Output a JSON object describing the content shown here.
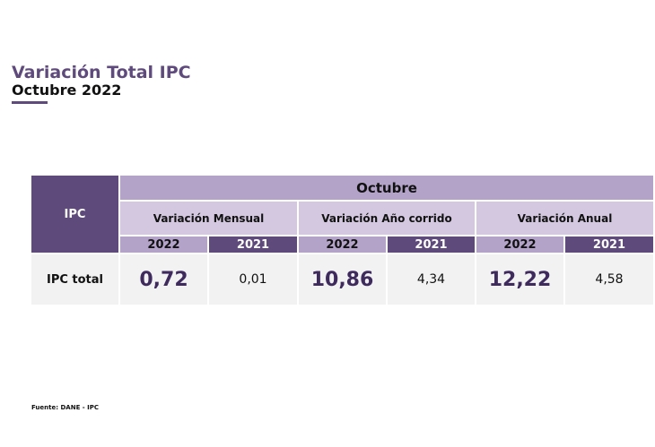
{
  "header": {
    "title": "Variación Total IPC",
    "subtitle": "Octubre 2022",
    "accent_color": "#5f4a7c"
  },
  "table": {
    "corner_label": "IPC",
    "month_label": "Octubre",
    "groups": [
      {
        "label": "Variación Mensual",
        "year_a": "2022",
        "year_b": "2021",
        "value_a": "0,72",
        "value_b": "0,01"
      },
      {
        "label": "Variación Año corrido",
        "year_a": "2022",
        "year_b": "2021",
        "value_a": "10,86",
        "value_b": "4,34"
      },
      {
        "label": "Variación Anual",
        "year_a": "2022",
        "year_b": "2021",
        "value_a": "12,22",
        "value_b": "4,58"
      }
    ],
    "row_label": "IPC total",
    "colors": {
      "dark_purple": "#5f4a7c",
      "mid_purple": "#b3a3c9",
      "light_purple": "#d3c8e0",
      "row_bg": "#f2f2f2"
    }
  },
  "footer": {
    "source": "Fuente: DANE - IPC"
  }
}
